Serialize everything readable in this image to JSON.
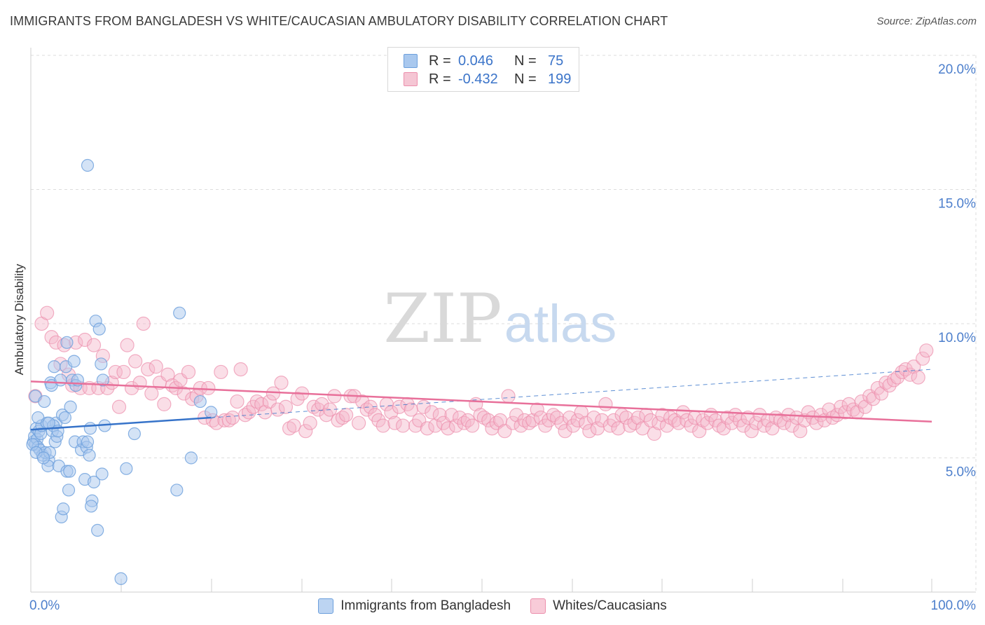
{
  "title": "IMMIGRANTS FROM BANGLADESH VS WHITE/CAUCASIAN AMBULATORY DISABILITY CORRELATION CHART",
  "source": "Source: ZipAtlas.com",
  "watermark": {
    "zip": "ZIP",
    "atlas": "atlas"
  },
  "colors": {
    "blue_fill": "#a9c8ee",
    "blue_stroke": "#6c9fdc",
    "blue_line": "#3673c9",
    "pink_fill": "#f5b6c9",
    "pink_stroke": "#ec8fac",
    "pink_line": "#e8709a",
    "axis_text": "#4d7fcc",
    "grid": "#dcdcdc"
  },
  "legend": {
    "rows": [
      {
        "r_label": "R =",
        "r_value": "0.046",
        "n_label": "N =",
        "n_value": "75"
      },
      {
        "r_label": "R =",
        "r_value": "-0.432",
        "n_label": "N =",
        "n_value": "199"
      }
    ]
  },
  "bottom_legend": [
    "Immigrants from Bangladesh",
    "Whites/Caucasians"
  ],
  "chart_data": {
    "type": "scatter",
    "title": "IMMIGRANTS FROM BANGLADESH VS WHITE/CAUCASIAN AMBULATORY DISABILITY CORRELATION CHART",
    "xlabel": "",
    "ylabel": "Ambulatory Disability",
    "xlim": [
      0,
      100
    ],
    "ylim": [
      0,
      20
    ],
    "x_tick_labels": [
      "0.0%",
      "100.0%"
    ],
    "y_ticks": [
      5,
      10,
      15,
      20
    ],
    "y_tick_labels": [
      "5.0%",
      "10.0%",
      "15.0%",
      "20.0%"
    ],
    "grid": true,
    "legend_position": "top-center",
    "series": [
      {
        "name": "Immigrants from Bangladesh",
        "color": "blue",
        "R": 0.046,
        "N": 75,
        "trend": {
          "x": [
            0,
            20
          ],
          "y": [
            6.05,
            6.5
          ]
        },
        "trend_dashed": {
          "x": [
            20,
            100
          ],
          "y": [
            6.5,
            8.3
          ]
        },
        "points": [
          [
            0.3,
            5.6
          ],
          [
            0.4,
            5.8
          ],
          [
            0.5,
            5.5
          ],
          [
            0.6,
            6.1
          ],
          [
            0.7,
            5.7
          ],
          [
            0.8,
            5.4
          ],
          [
            0.9,
            6.0
          ],
          [
            1.0,
            5.3
          ],
          [
            1.1,
            5.9
          ],
          [
            1.2,
            6.2
          ],
          [
            0.5,
            7.3
          ],
          [
            0.8,
            6.5
          ],
          [
            1.3,
            5.1
          ],
          [
            1.5,
            7.1
          ],
          [
            1.8,
            6.3
          ],
          [
            2.0,
            4.9
          ],
          [
            2.2,
            7.8
          ],
          [
            2.4,
            6.0
          ],
          [
            2.6,
            8.4
          ],
          [
            2.8,
            6.3
          ],
          [
            1.6,
            5.2
          ],
          [
            1.9,
            4.7
          ],
          [
            2.1,
            5.2
          ],
          [
            2.3,
            7.7
          ],
          [
            2.5,
            6.2
          ],
          [
            2.7,
            5.6
          ],
          [
            2.9,
            5.8
          ],
          [
            3.1,
            4.7
          ],
          [
            3.3,
            7.9
          ],
          [
            3.5,
            6.6
          ],
          [
            3.4,
            2.8
          ],
          [
            3.6,
            3.1
          ],
          [
            3.8,
            6.5
          ],
          [
            3.9,
            8.4
          ],
          [
            4.0,
            4.5
          ],
          [
            4.2,
            3.8
          ],
          [
            4.4,
            6.9
          ],
          [
            4.0,
            9.3
          ],
          [
            4.6,
            7.9
          ],
          [
            4.8,
            8.6
          ],
          [
            4.9,
            5.6
          ],
          [
            4.3,
            4.5
          ],
          [
            5.0,
            7.7
          ],
          [
            5.2,
            7.9
          ],
          [
            5.6,
            5.3
          ],
          [
            5.8,
            5.6
          ],
          [
            6.0,
            4.2
          ],
          [
            6.2,
            5.4
          ],
          [
            6.3,
            5.6
          ],
          [
            6.5,
            5.1
          ],
          [
            6.3,
            15.9
          ],
          [
            6.6,
            6.1
          ],
          [
            6.8,
            3.4
          ],
          [
            6.7,
            3.2
          ],
          [
            7.0,
            4.1
          ],
          [
            7.2,
            10.1
          ],
          [
            7.6,
            9.8
          ],
          [
            7.4,
            2.3
          ],
          [
            7.8,
            8.5
          ],
          [
            8.0,
            7.9
          ],
          [
            7.9,
            4.4
          ],
          [
            8.2,
            6.2
          ],
          [
            10.0,
            0.5
          ],
          [
            10.6,
            4.6
          ],
          [
            11.5,
            5.9
          ],
          [
            16.2,
            3.8
          ],
          [
            16.5,
            10.4
          ],
          [
            17.8,
            5.0
          ],
          [
            18.8,
            7.1
          ],
          [
            20.0,
            6.7
          ],
          [
            0.2,
            5.5
          ],
          [
            0.6,
            5.2
          ],
          [
            1.4,
            5.0
          ],
          [
            2.0,
            6.3
          ],
          [
            3.0,
            6.0
          ]
        ]
      },
      {
        "name": "Whites/Caucasians",
        "color": "pink",
        "R": -0.432,
        "N": 199,
        "trend": {
          "x": [
            0,
            100
          ],
          "y": [
            7.85,
            6.35
          ]
        },
        "points": [
          [
            0.5,
            7.3
          ],
          [
            1.2,
            10.0
          ],
          [
            1.8,
            10.4
          ],
          [
            2.3,
            9.5
          ],
          [
            2.8,
            9.3
          ],
          [
            3.3,
            8.5
          ],
          [
            3.7,
            9.2
          ],
          [
            4.2,
            8.1
          ],
          [
            4.6,
            7.7
          ],
          [
            5.0,
            9.3
          ],
          [
            5.5,
            7.6
          ],
          [
            6.0,
            9.4
          ],
          [
            6.5,
            7.6
          ],
          [
            7.0,
            9.2
          ],
          [
            7.5,
            7.6
          ],
          [
            8.0,
            8.8
          ],
          [
            8.5,
            7.6
          ],
          [
            9.0,
            7.8
          ],
          [
            9.4,
            8.2
          ],
          [
            9.8,
            6.9
          ],
          [
            10.3,
            8.2
          ],
          [
            10.7,
            9.2
          ],
          [
            11.2,
            7.6
          ],
          [
            11.6,
            8.6
          ],
          [
            12.1,
            7.8
          ],
          [
            12.5,
            10.0
          ],
          [
            13.0,
            8.3
          ],
          [
            13.4,
            7.4
          ],
          [
            13.9,
            8.4
          ],
          [
            14.3,
            7.8
          ],
          [
            14.8,
            7.0
          ],
          [
            15.2,
            8.1
          ],
          [
            15.7,
            7.7
          ],
          [
            16.1,
            7.6
          ],
          [
            16.6,
            7.9
          ],
          [
            17.0,
            7.4
          ],
          [
            17.5,
            8.2
          ],
          [
            17.9,
            7.2
          ],
          [
            18.4,
            7.3
          ],
          [
            18.8,
            7.6
          ],
          [
            19.3,
            6.5
          ],
          [
            19.7,
            7.6
          ],
          [
            20.2,
            6.4
          ],
          [
            20.6,
            6.3
          ],
          [
            21.1,
            8.2
          ],
          [
            21.5,
            6.4
          ],
          [
            22.0,
            6.4
          ],
          [
            22.4,
            6.5
          ],
          [
            22.9,
            7.1
          ],
          [
            23.3,
            8.3
          ],
          [
            23.8,
            6.6
          ],
          [
            24.2,
            6.7
          ],
          [
            24.7,
            6.9
          ],
          [
            25.1,
            7.1
          ],
          [
            25.6,
            7.0
          ],
          [
            26.0,
            6.7
          ],
          [
            26.5,
            7.1
          ],
          [
            26.9,
            7.4
          ],
          [
            27.4,
            6.8
          ],
          [
            27.8,
            7.8
          ],
          [
            28.3,
            6.9
          ],
          [
            28.7,
            6.1
          ],
          [
            29.2,
            6.2
          ],
          [
            29.6,
            7.2
          ],
          [
            30.1,
            7.4
          ],
          [
            30.5,
            6.0
          ],
          [
            31.0,
            6.3
          ],
          [
            31.4,
            6.9
          ],
          [
            31.9,
            6.8
          ],
          [
            32.3,
            7.0
          ],
          [
            32.8,
            6.6
          ],
          [
            33.2,
            6.8
          ],
          [
            33.7,
            7.3
          ],
          [
            34.1,
            6.4
          ],
          [
            34.6,
            6.5
          ],
          [
            35.0,
            6.6
          ],
          [
            35.5,
            7.3
          ],
          [
            35.9,
            7.3
          ],
          [
            36.4,
            6.3
          ],
          [
            36.8,
            7.1
          ],
          [
            37.3,
            6.8
          ],
          [
            37.7,
            6.9
          ],
          [
            38.2,
            6.6
          ],
          [
            38.6,
            6.4
          ],
          [
            39.1,
            6.2
          ],
          [
            39.5,
            7.0
          ],
          [
            40.0,
            6.7
          ],
          [
            40.4,
            6.3
          ],
          [
            40.9,
            6.9
          ],
          [
            41.3,
            6.2
          ],
          [
            41.8,
            7.0
          ],
          [
            42.2,
            6.8
          ],
          [
            42.7,
            6.2
          ],
          [
            43.1,
            6.4
          ],
          [
            43.6,
            6.9
          ],
          [
            44.0,
            6.1
          ],
          [
            44.5,
            6.7
          ],
          [
            44.9,
            6.2
          ],
          [
            45.4,
            6.6
          ],
          [
            45.8,
            6.3
          ],
          [
            46.3,
            6.1
          ],
          [
            46.7,
            6.6
          ],
          [
            47.2,
            6.2
          ],
          [
            47.6,
            6.5
          ],
          [
            48.1,
            6.3
          ],
          [
            48.5,
            6.4
          ],
          [
            49.0,
            6.2
          ],
          [
            49.4,
            7.0
          ],
          [
            49.9,
            6.6
          ],
          [
            50.3,
            6.5
          ],
          [
            50.8,
            6.4
          ],
          [
            51.2,
            6.1
          ],
          [
            51.7,
            6.3
          ],
          [
            52.1,
            6.4
          ],
          [
            52.6,
            6.0
          ],
          [
            53.0,
            7.3
          ],
          [
            53.5,
            6.3
          ],
          [
            53.9,
            6.6
          ],
          [
            54.4,
            6.2
          ],
          [
            54.8,
            6.4
          ],
          [
            55.3,
            6.3
          ],
          [
            55.7,
            6.4
          ],
          [
            56.2,
            6.8
          ],
          [
            56.6,
            6.5
          ],
          [
            57.1,
            6.2
          ],
          [
            57.5,
            6.4
          ],
          [
            58.0,
            6.6
          ],
          [
            58.4,
            6.5
          ],
          [
            58.9,
            6.3
          ],
          [
            59.3,
            6.0
          ],
          [
            59.8,
            6.5
          ],
          [
            60.2,
            6.2
          ],
          [
            60.7,
            6.4
          ],
          [
            61.1,
            6.7
          ],
          [
            61.6,
            6.3
          ],
          [
            62.0,
            6.0
          ],
          [
            62.5,
            6.5
          ],
          [
            62.9,
            6.1
          ],
          [
            63.4,
            6.4
          ],
          [
            63.8,
            7.0
          ],
          [
            64.3,
            6.2
          ],
          [
            64.7,
            6.4
          ],
          [
            65.2,
            6.1
          ],
          [
            65.6,
            6.6
          ],
          [
            66.1,
            6.5
          ],
          [
            66.5,
            6.2
          ],
          [
            67.0,
            6.3
          ],
          [
            67.4,
            6.5
          ],
          [
            67.9,
            6.1
          ],
          [
            68.3,
            6.6
          ],
          [
            68.8,
            6.4
          ],
          [
            69.2,
            5.9
          ],
          [
            69.7,
            6.3
          ],
          [
            70.1,
            6.6
          ],
          [
            70.6,
            6.2
          ],
          [
            71.0,
            6.5
          ],
          [
            71.5,
            6.4
          ],
          [
            71.9,
            6.3
          ],
          [
            72.4,
            6.7
          ],
          [
            72.8,
            6.4
          ],
          [
            73.3,
            6.2
          ],
          [
            73.7,
            6.5
          ],
          [
            74.2,
            6.0
          ],
          [
            74.6,
            6.4
          ],
          [
            75.1,
            6.3
          ],
          [
            75.5,
            6.6
          ],
          [
            76.0,
            6.4
          ],
          [
            76.4,
            6.2
          ],
          [
            76.9,
            6.1
          ],
          [
            77.3,
            6.5
          ],
          [
            77.8,
            6.3
          ],
          [
            78.2,
            6.6
          ],
          [
            78.7,
            6.4
          ],
          [
            79.1,
            6.2
          ],
          [
            79.6,
            6.5
          ],
          [
            80.0,
            6.0
          ],
          [
            80.5,
            6.3
          ],
          [
            80.9,
            6.6
          ],
          [
            81.4,
            6.2
          ],
          [
            81.8,
            6.4
          ],
          [
            82.3,
            6.1
          ],
          [
            82.7,
            6.5
          ],
          [
            83.2,
            6.4
          ],
          [
            83.6,
            6.3
          ],
          [
            84.1,
            6.6
          ],
          [
            84.5,
            6.2
          ],
          [
            85.0,
            6.5
          ],
          [
            85.4,
            6.0
          ],
          [
            85.9,
            6.4
          ],
          [
            86.3,
            6.7
          ],
          [
            86.8,
            6.5
          ],
          [
            87.2,
            6.3
          ],
          [
            87.7,
            6.6
          ],
          [
            88.1,
            6.4
          ],
          [
            88.6,
            6.8
          ],
          [
            89.0,
            6.5
          ],
          [
            89.5,
            6.6
          ],
          [
            89.9,
            6.9
          ],
          [
            90.4,
            6.7
          ],
          [
            90.8,
            7.0
          ],
          [
            91.3,
            6.8
          ],
          [
            91.7,
            6.7
          ],
          [
            92.2,
            7.1
          ],
          [
            92.6,
            6.9
          ],
          [
            93.1,
            7.3
          ],
          [
            93.5,
            7.2
          ],
          [
            94.0,
            7.6
          ],
          [
            94.4,
            7.4
          ],
          [
            94.9,
            7.8
          ],
          [
            95.3,
            7.7
          ],
          [
            95.8,
            7.9
          ],
          [
            96.2,
            8.0
          ],
          [
            96.7,
            8.2
          ],
          [
            97.1,
            8.3
          ],
          [
            97.6,
            8.1
          ],
          [
            98.0,
            8.4
          ],
          [
            98.5,
            8.0
          ],
          [
            99.0,
            8.7
          ],
          [
            99.4,
            9.0
          ]
        ]
      }
    ]
  }
}
